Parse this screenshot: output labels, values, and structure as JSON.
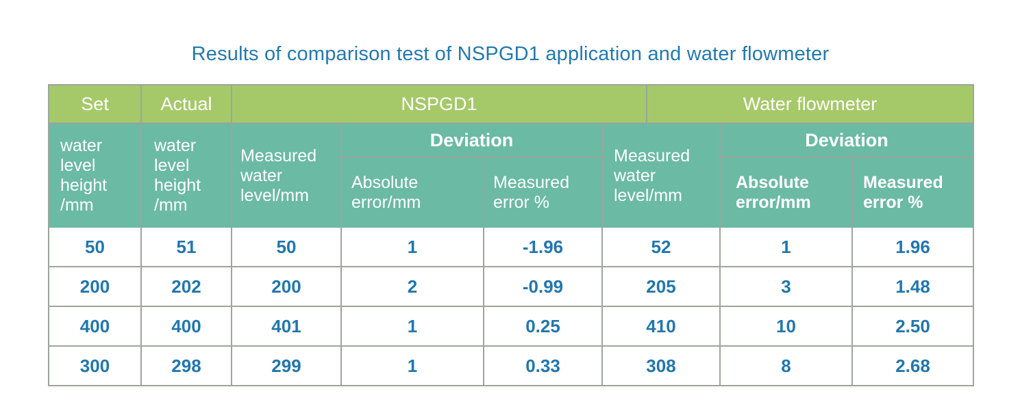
{
  "title": "Results of comparison test of NSPGD1 application and water flowmeter",
  "colors": {
    "header_green": "#a5c969",
    "header_teal": "#6bbaa3",
    "title_text": "#2279b0",
    "data_text": "#2177ae",
    "grid_line": "#9da49d"
  },
  "table": {
    "group_headers": {
      "set": "Set",
      "actual": "Actual",
      "nspgd1": "NSPGD1",
      "water_flowmeter": "Water flowmeter"
    },
    "column_headers": {
      "set_sub": "water level height /mm",
      "actual_sub": "water level height /mm",
      "nspgd1_measured": "Measured water level/mm",
      "nspgd1_deviation": "Deviation",
      "nspgd1_absolute_error": "Absolute error/mm",
      "nspgd1_measured_error": "Measured error %",
      "flowmeter_measured": "Measured water level/mm",
      "flowmeter_deviation": "Deviation",
      "flowmeter_absolute_error": "Absolute error/mm",
      "flowmeter_measured_error": "Measured error %"
    }
  },
  "chart_data": {
    "type": "table",
    "title": "Results of comparison test of NSPGD1 application and water flowmeter",
    "columns": [
      "Set water level height /mm",
      "Actual water level height /mm",
      "NSPGD1 Measured water level/mm",
      "NSPGD1 Deviation Absolute error/mm",
      "NSPGD1 Deviation Measured error %",
      "Water flowmeter Measured water level/mm",
      "Water flowmeter Deviation Absolute error/mm",
      "Water flowmeter Deviation Measured error %"
    ],
    "rows": [
      [
        "50",
        "51",
        "50",
        "1",
        "-1.96",
        "52",
        "1",
        "1.96"
      ],
      [
        "200",
        "202",
        "200",
        "2",
        "-0.99",
        "205",
        "3",
        "1.48"
      ],
      [
        "400",
        "400",
        "401",
        "1",
        "0.25",
        "410",
        "10",
        "2.50"
      ],
      [
        "300",
        "298",
        "299",
        "1",
        "0.33",
        "308",
        "8",
        "2.68"
      ]
    ]
  }
}
